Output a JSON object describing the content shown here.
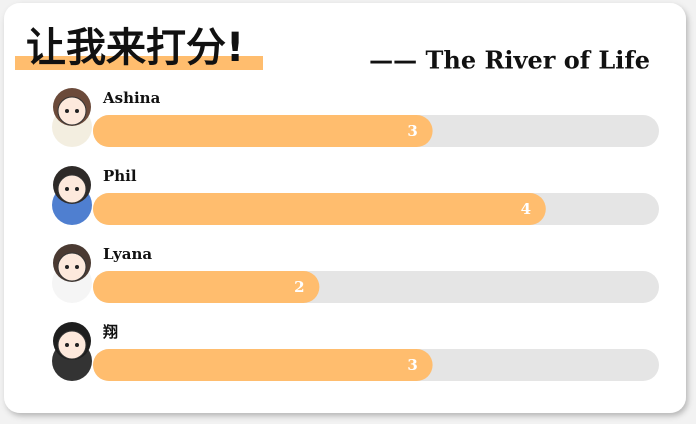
{
  "chart_data": {
    "type": "bar",
    "title": "让我来打分!",
    "subtitle": "—— The River of Life",
    "categories": [
      "Ashina",
      "Phil",
      "Lyana",
      "翔"
    ],
    "values": [
      3,
      4,
      2,
      3
    ],
    "color": "#ffbd6e",
    "track_color": "#e5e5e5",
    "xlim": [
      0,
      5
    ]
  }
}
